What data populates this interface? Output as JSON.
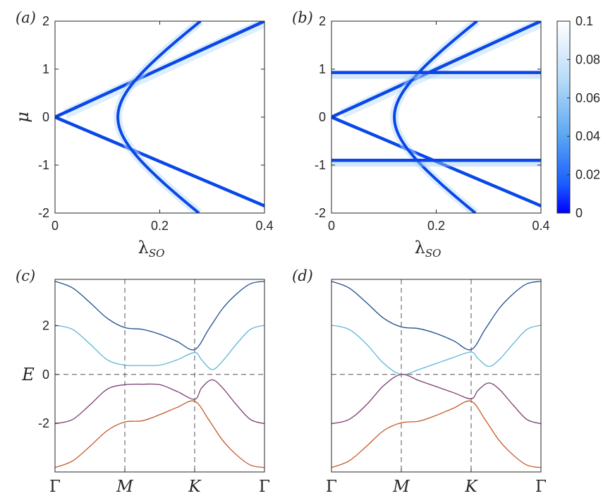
{
  "colors": {
    "band_blue": "#1f4e8c",
    "band_cyan": "#5bb6d6",
    "band_purple": "#7b3d72",
    "band_orange": "#c5582a",
    "peak": "#0a47e8",
    "cmap_low": "#0000ff",
    "cmap_high": "#ffffff"
  },
  "chart_data": [
    {
      "type": "heatmap",
      "panel_label": "(a)",
      "title": "",
      "xlabel": "λ",
      "xlabel_sub": "SO",
      "ylabel": "μ",
      "xlim": [
        0,
        0.4
      ],
      "ylim": [
        -2,
        2
      ],
      "xticks": [
        "0",
        "0.2",
        "0.4"
      ],
      "yticks": [
        "2",
        "1",
        "0",
        "-1",
        "-2"
      ],
      "features": [
        {
          "name": "",
          "shape": "line",
          "points": [
            [
              0,
              0
            ],
            [
              0.4,
              2.0
            ]
          ]
        },
        {
          "name": "",
          "shape": "line",
          "points": [
            [
              0,
              0
            ],
            [
              0.4,
              -1.85
            ]
          ]
        },
        {
          "name": "",
          "shape": "hyperbola",
          "vertex_x": 0.12,
          "upper_asymptote_end": [
            0.4,
            1.95
          ],
          "lower_end": [
            0.4,
            -2.0
          ]
        }
      ]
    },
    {
      "type": "heatmap",
      "panel_label": "(b)",
      "title": "",
      "xlabel": "λ",
      "xlabel_sub": "SO",
      "ylabel": "",
      "xlim": [
        0,
        0.4
      ],
      "ylim": [
        -2,
        2
      ],
      "xticks": [
        "0",
        "0.2",
        "0.4"
      ],
      "yticks": [
        "2",
        "1",
        "0",
        "-1",
        "-2"
      ],
      "features": [
        {
          "name": "",
          "shape": "line",
          "points": [
            [
              0,
              0
            ],
            [
              0.4,
              2.0
            ]
          ]
        },
        {
          "name": "",
          "shape": "line",
          "points": [
            [
              0,
              0
            ],
            [
              0.4,
              -1.85
            ]
          ]
        },
        {
          "name": "",
          "shape": "hyperbola",
          "vertex_x": 0.12,
          "upper_asymptote_end": [
            0.4,
            1.95
          ],
          "lower_end": [
            0.4,
            -2.0
          ]
        },
        {
          "name": "",
          "shape": "hline",
          "y": 0.93
        },
        {
          "name": "",
          "shape": "hline",
          "y": -0.9
        }
      ],
      "colorbar": {
        "ticks": [
          "0.1",
          "0.08",
          "0.06",
          "0.04",
          "0.02",
          "0"
        ],
        "range": [
          0,
          0.1
        ]
      }
    },
    {
      "type": "line",
      "panel_label": "(c)",
      "title": "",
      "xlabel": "",
      "ylabel": "E",
      "xlim": [
        0,
        3
      ],
      "ylim": [
        -4.0,
        3.9
      ],
      "xticks": [
        "Γ",
        "M",
        "K",
        "Γ"
      ],
      "yticks": [
        "2",
        "0",
        "-2"
      ],
      "series": [
        {
          "name": "",
          "color": "#1f4e8c",
          "x": [
            0,
            0.25,
            0.5,
            0.75,
            1.0,
            1.25,
            1.5,
            1.75,
            2.0,
            2.2,
            2.4,
            2.6,
            2.8,
            3.0
          ],
          "y": [
            3.82,
            3.55,
            2.95,
            2.3,
            1.92,
            1.85,
            1.65,
            1.35,
            1.02,
            1.85,
            2.7,
            3.3,
            3.72,
            3.82
          ]
        },
        {
          "name": "",
          "color": "#5bb6d6",
          "x": [
            0,
            0.25,
            0.5,
            0.75,
            1.0,
            1.25,
            1.5,
            1.75,
            2.0,
            2.1,
            2.25,
            2.4,
            2.6,
            2.8,
            3.0
          ],
          "y": [
            2.02,
            1.85,
            1.25,
            0.6,
            0.38,
            0.37,
            0.38,
            0.6,
            0.9,
            0.6,
            0.2,
            0.55,
            1.25,
            1.85,
            2.02
          ]
        },
        {
          "name": "",
          "color": "#7b3d72",
          "x": [
            0,
            0.25,
            0.5,
            0.75,
            1.0,
            1.25,
            1.5,
            1.75,
            2.0,
            2.1,
            2.25,
            2.4,
            2.6,
            2.8,
            3.0
          ],
          "y": [
            -2.02,
            -1.85,
            -1.25,
            -0.6,
            -0.42,
            -0.4,
            -0.42,
            -0.7,
            -1.02,
            -0.55,
            -0.22,
            -0.55,
            -1.25,
            -1.85,
            -2.02
          ]
        },
        {
          "name": "",
          "color": "#c5582a",
          "x": [
            0,
            0.25,
            0.5,
            0.75,
            1.0,
            1.25,
            1.5,
            1.75,
            2.0,
            2.2,
            2.4,
            2.6,
            2.8,
            3.0
          ],
          "y": [
            -3.82,
            -3.55,
            -2.95,
            -2.3,
            -1.95,
            -1.9,
            -1.65,
            -1.35,
            -1.1,
            -1.85,
            -2.7,
            -3.3,
            -3.72,
            -3.82
          ]
        }
      ]
    },
    {
      "type": "line",
      "panel_label": "(d)",
      "title": "",
      "xlabel": "",
      "ylabel": "",
      "xlim": [
        0,
        3
      ],
      "ylim": [
        -4.0,
        3.9
      ],
      "xticks": [
        "Γ",
        "M",
        "K",
        "Γ"
      ],
      "yticks": [],
      "series": [
        {
          "name": "",
          "color": "#1f4e8c",
          "x": [
            0,
            0.25,
            0.5,
            0.75,
            1.0,
            1.25,
            1.5,
            1.75,
            2.0,
            2.2,
            2.4,
            2.6,
            2.8,
            3.0
          ],
          "y": [
            3.82,
            3.55,
            2.95,
            2.3,
            1.95,
            1.88,
            1.68,
            1.38,
            1.02,
            1.85,
            2.7,
            3.3,
            3.72,
            3.82
          ]
        },
        {
          "name": "",
          "color": "#5bb6d6",
          "x": [
            0,
            0.25,
            0.5,
            0.75,
            1.0,
            1.25,
            1.5,
            1.75,
            2.0,
            2.1,
            2.25,
            2.4,
            2.6,
            2.8,
            3.0
          ],
          "y": [
            2.02,
            1.85,
            1.25,
            0.45,
            0.0,
            0.2,
            0.45,
            0.7,
            0.92,
            0.65,
            0.33,
            0.6,
            1.25,
            1.85,
            2.02
          ]
        },
        {
          "name": "",
          "color": "#7b3d72",
          "x": [
            0,
            0.25,
            0.5,
            0.75,
            1.0,
            1.25,
            1.5,
            1.75,
            2.0,
            2.1,
            2.25,
            2.4,
            2.6,
            2.8,
            3.0
          ],
          "y": [
            -2.02,
            -1.85,
            -1.25,
            -0.45,
            0.0,
            -0.25,
            -0.5,
            -0.75,
            -1.0,
            -0.65,
            -0.35,
            -0.6,
            -1.25,
            -1.85,
            -2.02
          ]
        },
        {
          "name": "",
          "color": "#c5582a",
          "x": [
            0,
            0.25,
            0.5,
            0.75,
            1.0,
            1.25,
            1.5,
            1.75,
            2.0,
            2.2,
            2.4,
            2.6,
            2.8,
            3.0
          ],
          "y": [
            -3.82,
            -3.55,
            -2.95,
            -2.3,
            -1.98,
            -1.92,
            -1.68,
            -1.38,
            -1.1,
            -1.85,
            -2.7,
            -3.3,
            -3.72,
            -3.82
          ]
        }
      ]
    }
  ]
}
